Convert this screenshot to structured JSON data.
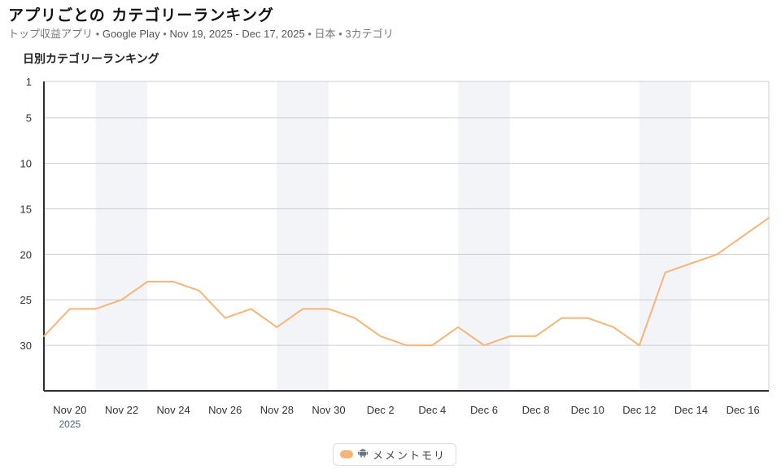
{
  "header": {
    "title": "アプリごとの カテゴリーランキング",
    "subtitle_parts": [
      "トップ収益アプリ",
      "Google Play",
      "Nov 19, 2025 - Dec 17, 2025",
      "日本",
      "3カテゴリ"
    ],
    "separator": "•"
  },
  "chart_heading": "日別カテゴリーランキング",
  "chart_data": {
    "type": "line",
    "title": "日別カテゴリーランキング",
    "xlabel": "",
    "ylabel": "",
    "y_axis_inverted": true,
    "ylim": [
      1,
      35
    ],
    "y_ticks": [
      1,
      5,
      10,
      15,
      20,
      25,
      30
    ],
    "x": [
      "2025-11-19",
      "2025-11-20",
      "2025-11-21",
      "2025-11-22",
      "2025-11-23",
      "2025-11-24",
      "2025-11-25",
      "2025-11-26",
      "2025-11-27",
      "2025-11-28",
      "2025-11-29",
      "2025-11-30",
      "2025-12-01",
      "2025-12-02",
      "2025-12-03",
      "2025-12-04",
      "2025-12-05",
      "2025-12-06",
      "2025-12-07",
      "2025-12-08",
      "2025-12-09",
      "2025-12-10",
      "2025-12-11",
      "2025-12-12",
      "2025-12-13",
      "2025-12-14",
      "2025-12-15",
      "2025-12-16",
      "2025-12-17"
    ],
    "x_tick_labels": [
      "Nov 20",
      "Nov 22",
      "Nov 24",
      "Nov 26",
      "Nov 28",
      "Nov 30",
      "Dec 2",
      "Dec 4",
      "Dec 6",
      "Dec 8",
      "Dec 10",
      "Dec 12",
      "Dec 14",
      "Dec 16"
    ],
    "x_tick_dates": [
      "2025-11-20",
      "2025-11-22",
      "2025-11-24",
      "2025-11-26",
      "2025-11-28",
      "2025-11-30",
      "2025-12-02",
      "2025-12-04",
      "2025-12-06",
      "2025-12-08",
      "2025-12-10",
      "2025-12-12",
      "2025-12-14",
      "2025-12-16"
    ],
    "year_label": "2025",
    "shaded_ranges": [
      [
        "2025-11-21",
        "2025-11-23"
      ],
      [
        "2025-11-28",
        "2025-11-30"
      ],
      [
        "2025-12-05",
        "2025-12-07"
      ],
      [
        "2025-12-12",
        "2025-12-14"
      ]
    ],
    "grid": true,
    "legend_position": "bottom-center",
    "series": [
      {
        "name": "メメントモリ",
        "color": "#f6b577",
        "platform_icon": "android-icon",
        "values": [
          29,
          26,
          26,
          25,
          23,
          23,
          24,
          27,
          26,
          28,
          26,
          26,
          27,
          29,
          30,
          30,
          28,
          30,
          29,
          29,
          27,
          27,
          28,
          30,
          22,
          21,
          20,
          18,
          16
        ]
      }
    ]
  }
}
